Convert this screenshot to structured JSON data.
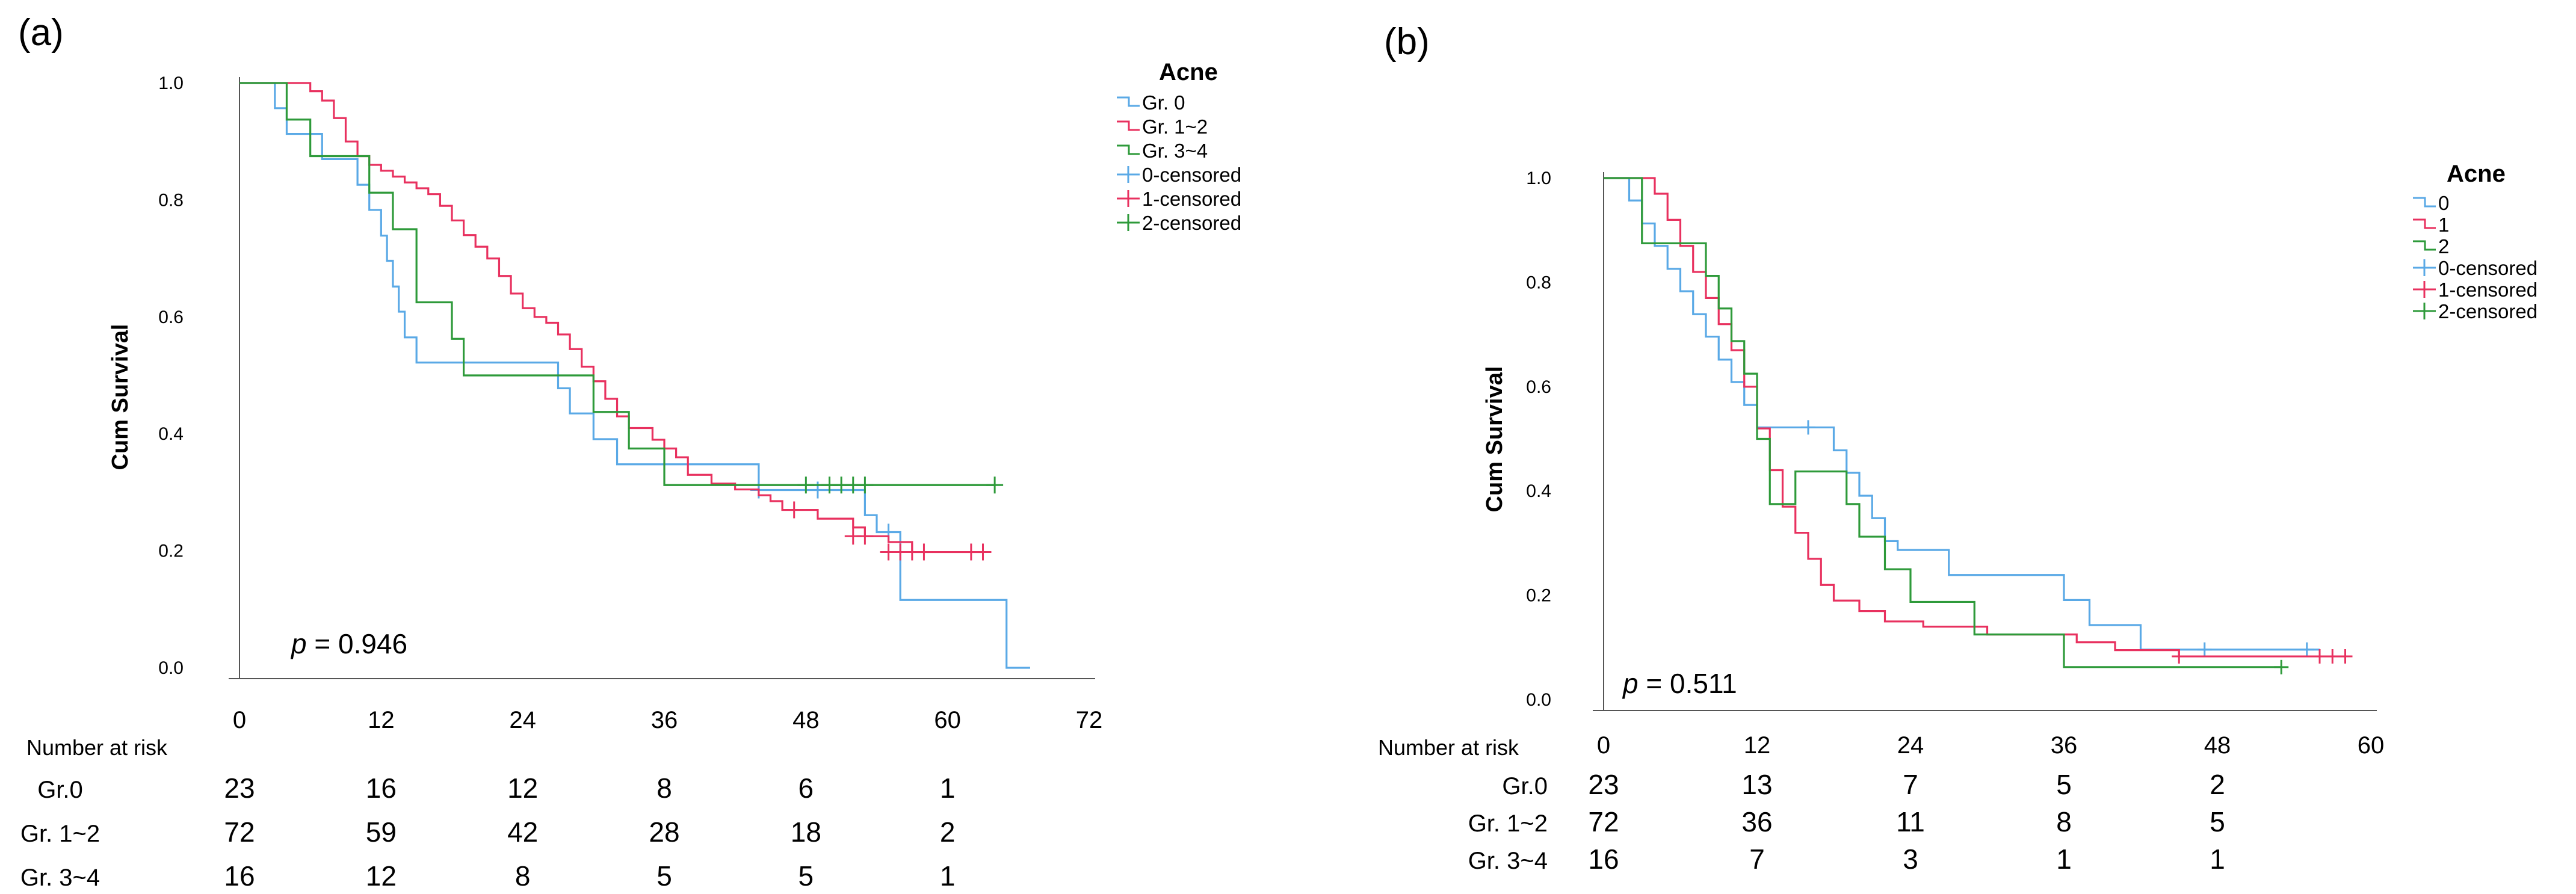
{
  "colors": {
    "series0": "#5aa9e6",
    "series1": "#e8315f",
    "series2": "#2e9a3a",
    "axis": "#555555"
  },
  "chart_data": [
    {
      "panel": "(a)",
      "type": "line",
      "title": "",
      "xlabel": "",
      "ylabel": "Cum Survival",
      "xlim": [
        0,
        72
      ],
      "ylim": [
        0,
        1.0
      ],
      "xticks": [
        "0",
        "12",
        "24",
        "36",
        "48",
        "60",
        "72"
      ],
      "yticks": [
        "0.0",
        "0.2",
        "0.4",
        "0.6",
        "0.8",
        "1.0"
      ],
      "legend_title": "Acne",
      "legend": [
        "Gr. 0",
        "Gr. 1~2",
        "Gr. 3~4",
        "0-censored",
        "1-censored",
        "2-censored"
      ],
      "p_label": "p",
      "p_value": "= 0.946",
      "series": [
        {
          "name": "Gr. 0",
          "color_key": "series0",
          "steps": [
            [
              0,
              1.0
            ],
            [
              3,
              0.957
            ],
            [
              4,
              0.913
            ],
            [
              7,
              0.87
            ],
            [
              10,
              0.826
            ],
            [
              11,
              0.783
            ],
            [
              12,
              0.739
            ],
            [
              12.5,
              0.696
            ],
            [
              13,
              0.652
            ],
            [
              13.5,
              0.609
            ],
            [
              14,
              0.565
            ],
            [
              15,
              0.522
            ],
            [
              27,
              0.478
            ],
            [
              28,
              0.435
            ],
            [
              30,
              0.391
            ],
            [
              32,
              0.348
            ],
            [
              44,
              0.304
            ],
            [
              53,
              0.261
            ],
            [
              54,
              0.232
            ],
            [
              56,
              0.116
            ],
            [
              65,
              0.0
            ]
          ],
          "end": 67,
          "censored": [
            [
              44,
              0.304
            ],
            [
              49,
              0.304
            ],
            [
              55,
              0.232
            ]
          ]
        },
        {
          "name": "Gr. 1~2",
          "color_key": "series1",
          "steps": [
            [
              0,
              1.0
            ],
            [
              6,
              0.986
            ],
            [
              7,
              0.97
            ],
            [
              8,
              0.94
            ],
            [
              9,
              0.9
            ],
            [
              10,
              0.875
            ],
            [
              11,
              0.86
            ],
            [
              12,
              0.85
            ],
            [
              13,
              0.84
            ],
            [
              14,
              0.83
            ],
            [
              15,
              0.82
            ],
            [
              16,
              0.81
            ],
            [
              17,
              0.79
            ],
            [
              18,
              0.765
            ],
            [
              19,
              0.74
            ],
            [
              20,
              0.72
            ],
            [
              21,
              0.7
            ],
            [
              22,
              0.67
            ],
            [
              23,
              0.64
            ],
            [
              24,
              0.615
            ],
            [
              25,
              0.6
            ],
            [
              26,
              0.59
            ],
            [
              27,
              0.57
            ],
            [
              28,
              0.545
            ],
            [
              29,
              0.515
            ],
            [
              30,
              0.49
            ],
            [
              31,
              0.46
            ],
            [
              32,
              0.43
            ],
            [
              33,
              0.41
            ],
            [
              35,
              0.39
            ],
            [
              36,
              0.375
            ],
            [
              37,
              0.36
            ],
            [
              38,
              0.33
            ],
            [
              40,
              0.315
            ],
            [
              42,
              0.305
            ],
            [
              44,
              0.295
            ],
            [
              45,
              0.285
            ],
            [
              46,
              0.27
            ],
            [
              49,
              0.255
            ],
            [
              52,
              0.24
            ],
            [
              53,
              0.225
            ],
            [
              55,
              0.215
            ],
            [
              57,
              0.198
            ]
          ],
          "end": 63,
          "censored": [
            [
              47,
              0.27
            ],
            [
              52,
              0.225
            ],
            [
              53,
              0.225
            ],
            [
              55,
              0.198
            ],
            [
              56,
              0.198
            ],
            [
              57,
              0.198
            ],
            [
              58,
              0.198
            ],
            [
              62,
              0.198
            ],
            [
              63,
              0.198
            ]
          ]
        },
        {
          "name": "Gr. 3~4",
          "color_key": "series2",
          "steps": [
            [
              0,
              1.0
            ],
            [
              4,
              0.9375
            ],
            [
              6,
              0.875
            ],
            [
              11,
              0.8125
            ],
            [
              13,
              0.75
            ],
            [
              15,
              0.625
            ],
            [
              18,
              0.5625
            ],
            [
              19,
              0.5
            ],
            [
              30,
              0.4375
            ],
            [
              33,
              0.375
            ],
            [
              36,
              0.3125
            ]
          ],
          "end": 64,
          "censored": [
            [
              48,
              0.3125
            ],
            [
              50,
              0.3125
            ],
            [
              51,
              0.3125
            ],
            [
              52,
              0.3125
            ],
            [
              53,
              0.3125
            ],
            [
              64,
              0.3125
            ]
          ]
        }
      ],
      "risk_table": {
        "header": "Number at risk",
        "rows": [
          {
            "label": "Gr.0",
            "values": [
              "23",
              "16",
              "12",
              "8",
              "6",
              "1"
            ]
          },
          {
            "label": "Gr. 1~2",
            "values": [
              "72",
              "59",
              "42",
              "28",
              "18",
              "2"
            ]
          },
          {
            "label": "Gr. 3~4",
            "values": [
              "16",
              "12",
              "8",
              "5",
              "5",
              "1"
            ]
          }
        ]
      }
    },
    {
      "panel": "(b)",
      "type": "line",
      "title": "",
      "xlabel": "",
      "ylabel": "Cum Survival",
      "xlim": [
        0,
        60
      ],
      "ylim": [
        0,
        1.0
      ],
      "xticks": [
        "0",
        "12",
        "24",
        "36",
        "48",
        "60"
      ],
      "yticks": [
        "0.0",
        "0.2",
        "0.4",
        "0.6",
        "0.8",
        "1.0"
      ],
      "legend_title": "Acne",
      "legend": [
        "0",
        "1",
        "2",
        "0-censored",
        "1-censored",
        "2-censored"
      ],
      "p_label": "p",
      "p_value": "= 0.511",
      "series": [
        {
          "name": "0",
          "color_key": "series0",
          "steps": [
            [
              0,
              1.0
            ],
            [
              2,
              0.957
            ],
            [
              3,
              0.913
            ],
            [
              4,
              0.87
            ],
            [
              5,
              0.826
            ],
            [
              6,
              0.783
            ],
            [
              7,
              0.739
            ],
            [
              8,
              0.696
            ],
            [
              9,
              0.652
            ],
            [
              10,
              0.609
            ],
            [
              11,
              0.565
            ],
            [
              12,
              0.522
            ],
            [
              18,
              0.478
            ],
            [
              19,
              0.435
            ],
            [
              20,
              0.391
            ],
            [
              21,
              0.348
            ],
            [
              22,
              0.304
            ],
            [
              23,
              0.287
            ],
            [
              27,
              0.239
            ],
            [
              36,
              0.191
            ],
            [
              38,
              0.143
            ],
            [
              42,
              0.096
            ]
          ],
          "end": 56,
          "censored": [
            [
              16,
              0.522
            ],
            [
              47,
              0.096
            ],
            [
              55,
              0.096
            ]
          ]
        },
        {
          "name": "1",
          "color_key": "series1",
          "steps": [
            [
              0,
              1.0
            ],
            [
              4,
              0.97
            ],
            [
              5,
              0.92
            ],
            [
              6,
              0.87
            ],
            [
              7,
              0.82
            ],
            [
              8,
              0.77
            ],
            [
              9,
              0.72
            ],
            [
              10,
              0.67
            ],
            [
              11,
              0.6
            ],
            [
              12,
              0.52
            ],
            [
              13,
              0.44
            ],
            [
              14,
              0.37
            ],
            [
              15,
              0.32
            ],
            [
              16,
              0.27
            ],
            [
              17,
              0.22
            ],
            [
              18,
              0.19
            ],
            [
              20,
              0.17
            ],
            [
              22,
              0.15
            ],
            [
              25,
              0.14
            ],
            [
              30,
              0.125
            ],
            [
              37,
              0.11
            ],
            [
              40,
              0.095
            ],
            [
              45,
              0.083
            ]
          ],
          "end": 58,
          "censored": [
            [
              45,
              0.083
            ],
            [
              56,
              0.083
            ],
            [
              57,
              0.083
            ],
            [
              58,
              0.083
            ]
          ]
        },
        {
          "name": "2",
          "color_key": "series2",
          "steps": [
            [
              0,
              1.0
            ],
            [
              3,
              0.875
            ],
            [
              8,
              0.8125
            ],
            [
              9,
              0.75
            ],
            [
              10,
              0.6875
            ],
            [
              11,
              0.625
            ],
            [
              12,
              0.5
            ],
            [
              13,
              0.375
            ],
            [
              15,
              0.4375
            ],
            [
              19,
              0.375
            ],
            [
              20,
              0.3125
            ],
            [
              22,
              0.25
            ],
            [
              24,
              0.1875
            ],
            [
              29,
              0.125
            ],
            [
              36,
              0.0625
            ]
          ],
          "end": 53,
          "censored": [
            [
              53,
              0.0625
            ]
          ]
        }
      ],
      "risk_table": {
        "header": "Number at risk",
        "rows": [
          {
            "label": "Gr.0",
            "values": [
              "23",
              "13",
              "7",
              "5",
              "2"
            ]
          },
          {
            "label": "Gr. 1~2",
            "values": [
              "72",
              "36",
              "11",
              "8",
              "5"
            ]
          },
          {
            "label": "Gr. 3~4",
            "values": [
              "16",
              "7",
              "3",
              "1",
              "1"
            ]
          }
        ]
      }
    }
  ]
}
